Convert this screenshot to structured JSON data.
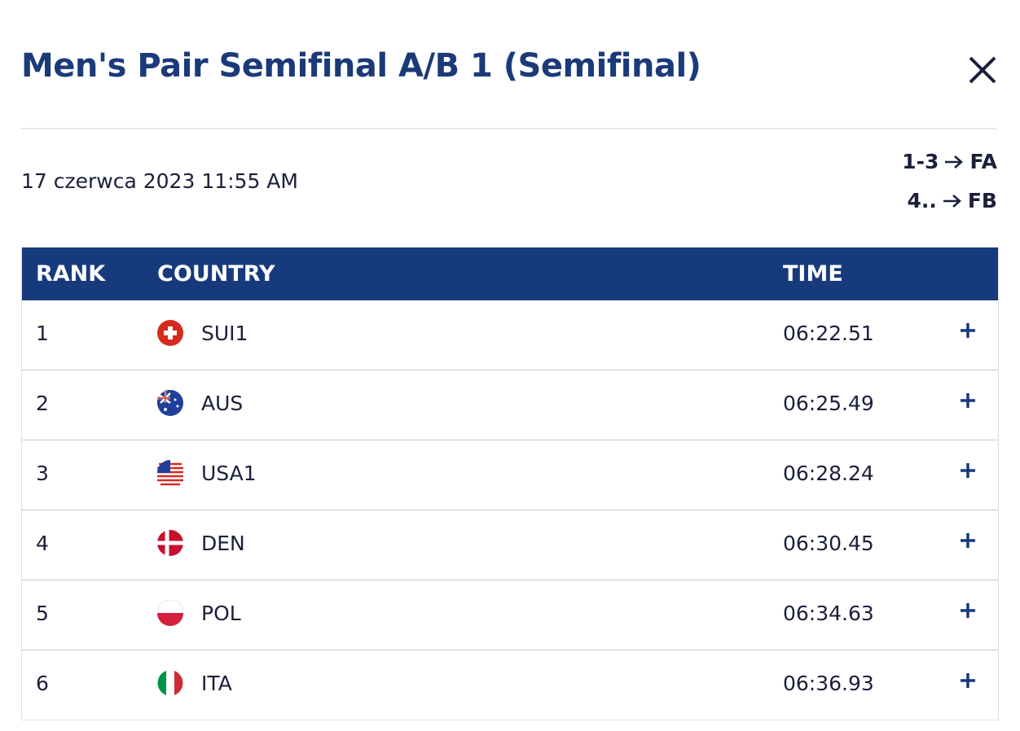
{
  "header": {
    "title": "Men's Pair Semifinal A/B 1 (Semifinal)",
    "date": "17 czerwca 2023 11:55 AM",
    "progression": [
      {
        "from": "1-3",
        "to": "FA"
      },
      {
        "from": "4..",
        "to": "FB"
      }
    ]
  },
  "table": {
    "columns": [
      "RANK",
      "COUNTRY",
      "TIME"
    ],
    "rows": [
      [
        1,
        "SUI1",
        "06:22.51"
      ],
      [
        2,
        "AUS",
        "06:25.49"
      ],
      [
        3,
        "USA1",
        "06:28.24"
      ],
      [
        4,
        "DEN",
        "06:30.45"
      ],
      [
        5,
        "POL",
        "06:34.63"
      ],
      [
        6,
        "ITA",
        "06:36.93"
      ]
    ]
  }
}
